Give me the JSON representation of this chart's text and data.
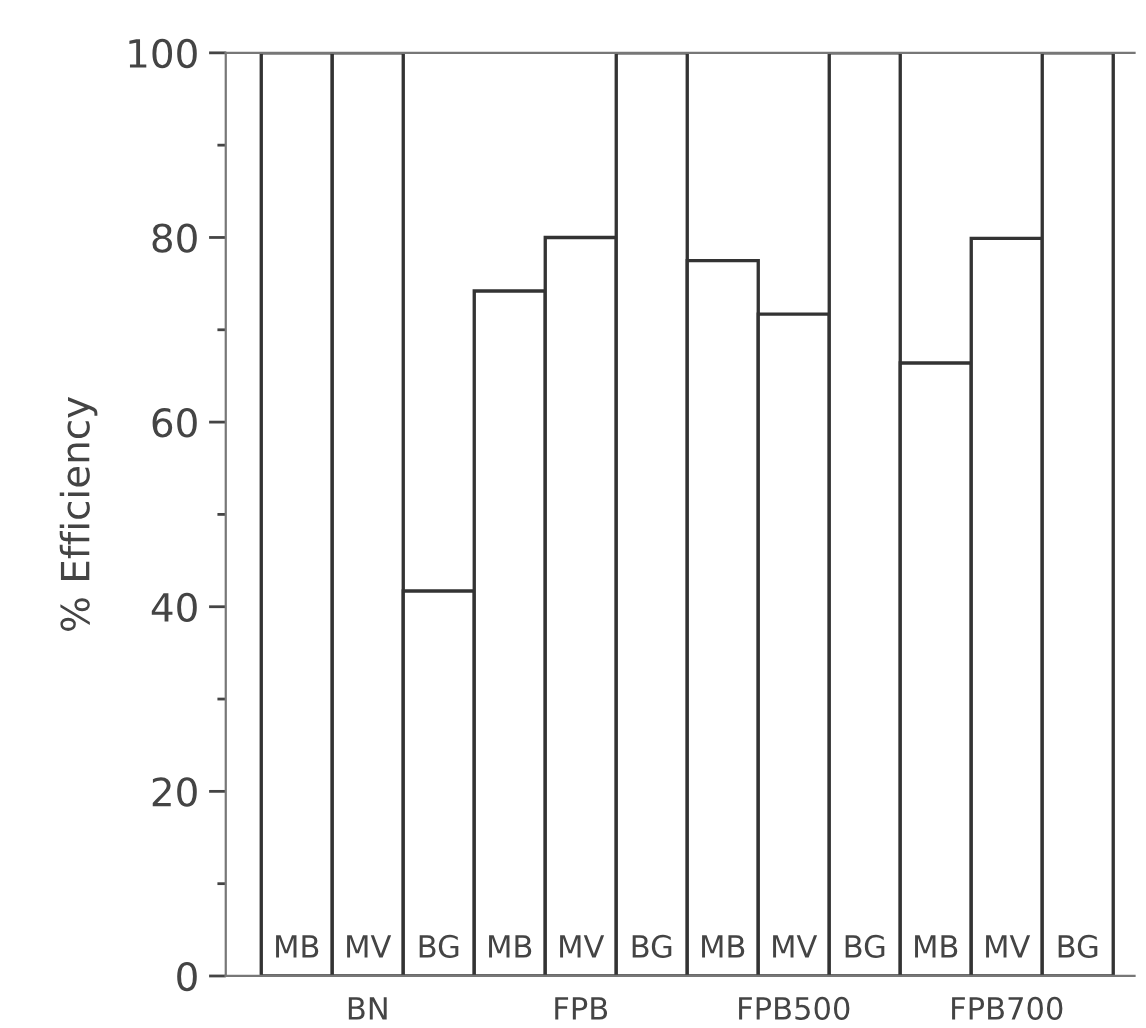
{
  "chart_data": {
    "type": "bar",
    "ylabel": "% Efficiency",
    "categories": [
      "MB",
      "MV",
      "BG",
      "MB",
      "MV",
      "BG",
      "MB",
      "MV",
      "BG",
      "MB",
      "MV",
      "BG"
    ],
    "values": [
      100,
      100,
      41.7,
      74.2,
      80,
      100,
      77.5,
      71.7,
      100,
      66.4,
      79.9,
      100
    ],
    "color": "#ffffff",
    "ylim": [
      0,
      100
    ],
    "yticks": [
      0,
      20,
      40,
      60,
      80,
      100
    ],
    "grid": false,
    "legend": false,
    "annotations": [
      "BN",
      "FPB",
      "FPB500",
      "FPB700"
    ]
  }
}
